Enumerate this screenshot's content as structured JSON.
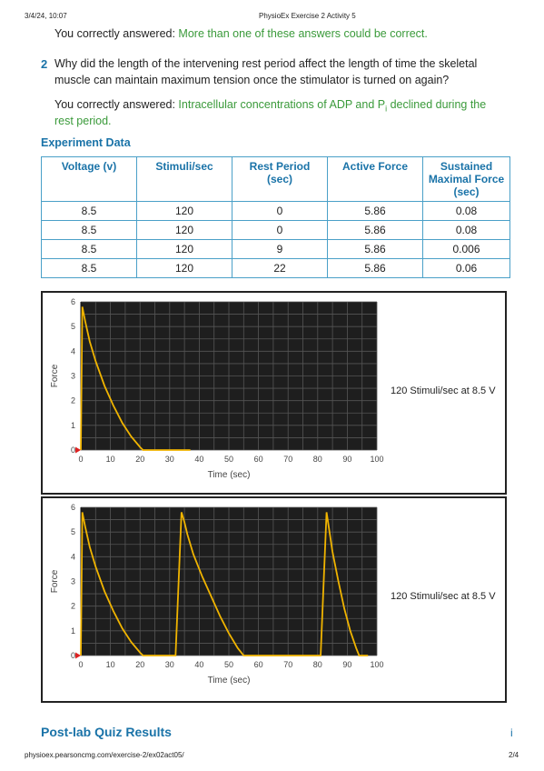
{
  "header": {
    "date": "3/4/24, 10:07",
    "title": "PhysioEx Exercise 2 Activity 5"
  },
  "q1_answer": {
    "prefix": "You correctly answered: ",
    "answer": "More than one of these answers could be correct."
  },
  "question2": {
    "number": "2",
    "line1": "Why did the length of the intervening rest period affect the length of time the skeletal",
    "line2": "muscle can maintain maximum tension once the stimulator is turned on again?",
    "answer_prefix": "You correctly answered: ",
    "answer_line1": "Intracellular concentrations of ADP and P",
    "answer_sub": "i",
    "answer_line1_end": " declined during the",
    "answer_line2": "rest period."
  },
  "experiment": {
    "title": "Experiment Data",
    "headers": [
      "Voltage (v)",
      "Stimuli/sec",
      "Rest Period (sec)",
      "Active Force",
      "Sustained Maximal Force (sec)"
    ],
    "rows": [
      [
        "8.5",
        "120",
        "0",
        "5.86",
        "0.08"
      ],
      [
        "8.5",
        "120",
        "0",
        "5.86",
        "0.08"
      ],
      [
        "8.5",
        "120",
        "9",
        "5.86",
        "0.006"
      ],
      [
        "8.5",
        "120",
        "22",
        "5.86",
        "0.06"
      ]
    ]
  },
  "graphs": [
    {
      "label": "120 Stimuli/sec at 8.5 V"
    },
    {
      "label": "120 Stimuli/sec at 8.5 V"
    }
  ],
  "chart_data": [
    {
      "type": "line",
      "xlabel": "Time (sec)",
      "ylabel": "Force",
      "xlim": [
        0,
        100
      ],
      "ylim": [
        0,
        6
      ],
      "x_ticks": [
        "0",
        "10",
        "20",
        "30",
        "40",
        "50",
        "60",
        "70",
        "80",
        "90",
        "100"
      ],
      "y_ticks": [
        "0",
        "1",
        "2",
        "3",
        "4",
        "5",
        "6"
      ],
      "series": [
        {
          "x": [
            0,
            0.5,
            1.5,
            3,
            5,
            8,
            11,
            14,
            17,
            20,
            21,
            37
          ],
          "y": [
            0,
            5.8,
            5.2,
            4.4,
            3.6,
            2.6,
            1.8,
            1.1,
            0.55,
            0.12,
            0,
            0
          ]
        }
      ]
    },
    {
      "type": "line",
      "xlabel": "Time (sec)",
      "ylabel": "Force",
      "xlim": [
        0,
        100
      ],
      "ylim": [
        0,
        6
      ],
      "x_ticks": [
        "0",
        "10",
        "20",
        "30",
        "40",
        "50",
        "60",
        "70",
        "80",
        "90",
        "100"
      ],
      "y_ticks": [
        "0",
        "1",
        "2",
        "3",
        "4",
        "5",
        "6"
      ],
      "series": [
        {
          "x": [
            0,
            0.5,
            1.5,
            3,
            5,
            8,
            11,
            14,
            17,
            20,
            21,
            32,
            34,
            35,
            36,
            38,
            41,
            44,
            47,
            50,
            53,
            55,
            81,
            83,
            84,
            85,
            87,
            89,
            91,
            93,
            94,
            97
          ],
          "y": [
            0,
            5.8,
            5.2,
            4.4,
            3.6,
            2.6,
            1.8,
            1.1,
            0.55,
            0.12,
            0,
            0,
            5.8,
            5.4,
            4.9,
            4.1,
            3.2,
            2.4,
            1.6,
            0.9,
            0.3,
            0,
            0,
            5.8,
            5.0,
            4.2,
            3.0,
            1.9,
            1.0,
            0.3,
            0,
            0
          ]
        }
      ]
    }
  ],
  "footer_section": {
    "title": "Post-lab Quiz Results",
    "mark": "i"
  },
  "footer": {
    "url": "physioex.pearsoncmg.com/exercise-2/ex02act05/",
    "page": "2/4"
  }
}
